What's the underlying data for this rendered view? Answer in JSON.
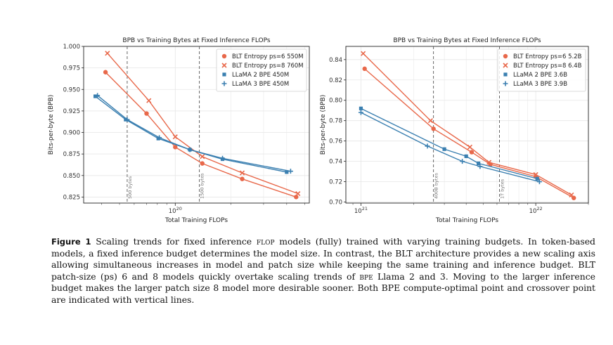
{
  "figure": {
    "label": "Figure 1",
    "caption_parts": [
      {
        "text": "Scaling trends for fixed inference ",
        "style": "normal"
      },
      {
        "text": "flop",
        "style": "sc"
      },
      {
        "text": " models (fully) trained with varying training budgets. In token-based models, a fixed inference budget determines the model size. In contrast, the BLT architecture provides a new scaling axis allowing simultaneous increases in model and patch size while keeping the same training and inference budget. BLT patch-size (ps) 6 and 8 models quickly overtake scaling trends of ",
        "style": "normal"
      },
      {
        "text": "bpe",
        "style": "sc"
      },
      {
        "text": " Llama 2 and 3. Moving to the larger inference budget makes the larger patch size 8 model more desirable sooner. Both BPE compute-optimal point and crossover point are indicated with vertical lines.",
        "style": "normal"
      }
    ]
  },
  "colors": {
    "red": "#e8684a",
    "blue": "#3a7fb0",
    "vline": "#555555",
    "grid": "#e6e6e6"
  },
  "chart_data": [
    {
      "type": "line",
      "title": "BPB vs Training Bytes at Fixed Inference FLOPs",
      "xlabel": "Total Training FLOPs",
      "ylabel": "Bits-per-byte (BPB)",
      "xscale": "log",
      "xlim": [
        3.2e+19,
        5.3e+20
      ],
      "ylim": [
        0.818,
        1.0
      ],
      "yticks": [
        1.0,
        0.975,
        0.95,
        0.925,
        0.9,
        0.875,
        0.85,
        0.825
      ],
      "ytick_labels": [
        "1.000",
        "0.975",
        "0.950",
        "0.925",
        "0.900",
        "0.875",
        "0.850",
        "0.825"
      ],
      "xticks": [
        1e+20
      ],
      "xtick_labels": [
        "10^20"
      ],
      "grid": true,
      "legend_position": "top-right",
      "series": [
        {
          "name": "BLT Entropy ps=6 550M",
          "color": "red",
          "marker": "dot",
          "x": [
            4.2e+19,
            7e+19,
            1e+20,
            1.4e+20,
            2.3e+20,
            4.5e+20
          ],
          "y": [
            0.97,
            0.922,
            0.883,
            0.864,
            0.846,
            0.825
          ]
        },
        {
          "name": "BLT Entropy ps=8 760M",
          "color": "red",
          "marker": "x",
          "x": [
            4.3e+19,
            7.2e+19,
            1e+20,
            1.4e+20,
            2.3e+20,
            4.6e+20
          ],
          "y": [
            0.992,
            0.937,
            0.895,
            0.872,
            0.853,
            0.829
          ]
        },
        {
          "name": "LLaMA 2 BPE 450M",
          "color": "blue",
          "marker": "square",
          "x": [
            3.7e+19,
            5.4e+19,
            8.1e+19,
            1.2e+20,
            1.8e+20,
            4e+20
          ],
          "y": [
            0.942,
            0.915,
            0.893,
            0.88,
            0.869,
            0.854
          ]
        },
        {
          "name": "LLaMA 3 BPE 450M",
          "color": "blue",
          "marker": "plus",
          "x": [
            3.8e+19,
            5.5e+19,
            8.2e+19,
            1.2e+20,
            1.8e+20,
            4.2e+20
          ],
          "y": [
            0.943,
            0.915,
            0.894,
            0.88,
            0.87,
            0.855
          ]
        }
      ],
      "vlines": [
        {
          "x": 5.5e+19,
          "label": "500 bytes"
        },
        {
          "x": 1.35e+20,
          "label": "1500 bytes"
        }
      ]
    },
    {
      "type": "line",
      "title": "BPB vs Training Bytes at Fixed Inference FLOPs",
      "xlabel": "Total Training FLOPs",
      "ylabel": "Bits-per-byte (BPB)",
      "xscale": "log",
      "xlim": [
        8.2e+20,
        2e+22
      ],
      "ylim": [
        0.699,
        0.853
      ],
      "yticks": [
        0.84,
        0.82,
        0.8,
        0.78,
        0.76,
        0.74,
        0.72,
        0.7
      ],
      "ytick_labels": [
        "0.84",
        "0.82",
        "0.80",
        "0.78",
        "0.76",
        "0.74",
        "0.72",
        "0.70"
      ],
      "xticks": [
        1e+21,
        1e+22
      ],
      "xtick_labels": [
        "10^21",
        "10^22"
      ],
      "grid": true,
      "legend_position": "top-right",
      "series": [
        {
          "name": "BLT Entropy ps=6 5.2B",
          "color": "red",
          "marker": "dot",
          "x": [
            1.05e+21,
            2.6e+21,
            4.3e+21,
            5.5e+21,
            1e+22,
            1.65e+22
          ],
          "y": [
            0.831,
            0.772,
            0.749,
            0.737,
            0.725,
            0.704
          ]
        },
        {
          "name": "BLT Entropy ps=8 6.4B",
          "color": "red",
          "marker": "x",
          "x": [
            1.03e+21,
            2.5e+21,
            4.2e+21,
            5.4e+21,
            1e+22,
            1.6e+22
          ],
          "y": [
            0.846,
            0.78,
            0.754,
            0.739,
            0.727,
            0.707
          ]
        },
        {
          "name": "LLaMA 2 BPE 3.6B",
          "color": "blue",
          "marker": "square",
          "x": [
            1e+21,
            3e+21,
            4e+21,
            4.7e+21,
            1.02e+22
          ],
          "y": [
            0.792,
            0.752,
            0.745,
            0.738,
            0.723
          ]
        },
        {
          "name": "LLaMA 3 BPE 3.9B",
          "color": "blue",
          "marker": "plus",
          "x": [
            1e+21,
            2.4e+21,
            3.8e+21,
            4.8e+21,
            1.05e+22
          ],
          "y": [
            0.788,
            0.755,
            0.74,
            0.735,
            0.72
          ]
        }
      ],
      "vlines": [
        {
          "x": 2.6e+21,
          "label": "400B bytes"
        },
        {
          "x": 6.2e+21,
          "label": "1T bytes"
        }
      ]
    }
  ]
}
